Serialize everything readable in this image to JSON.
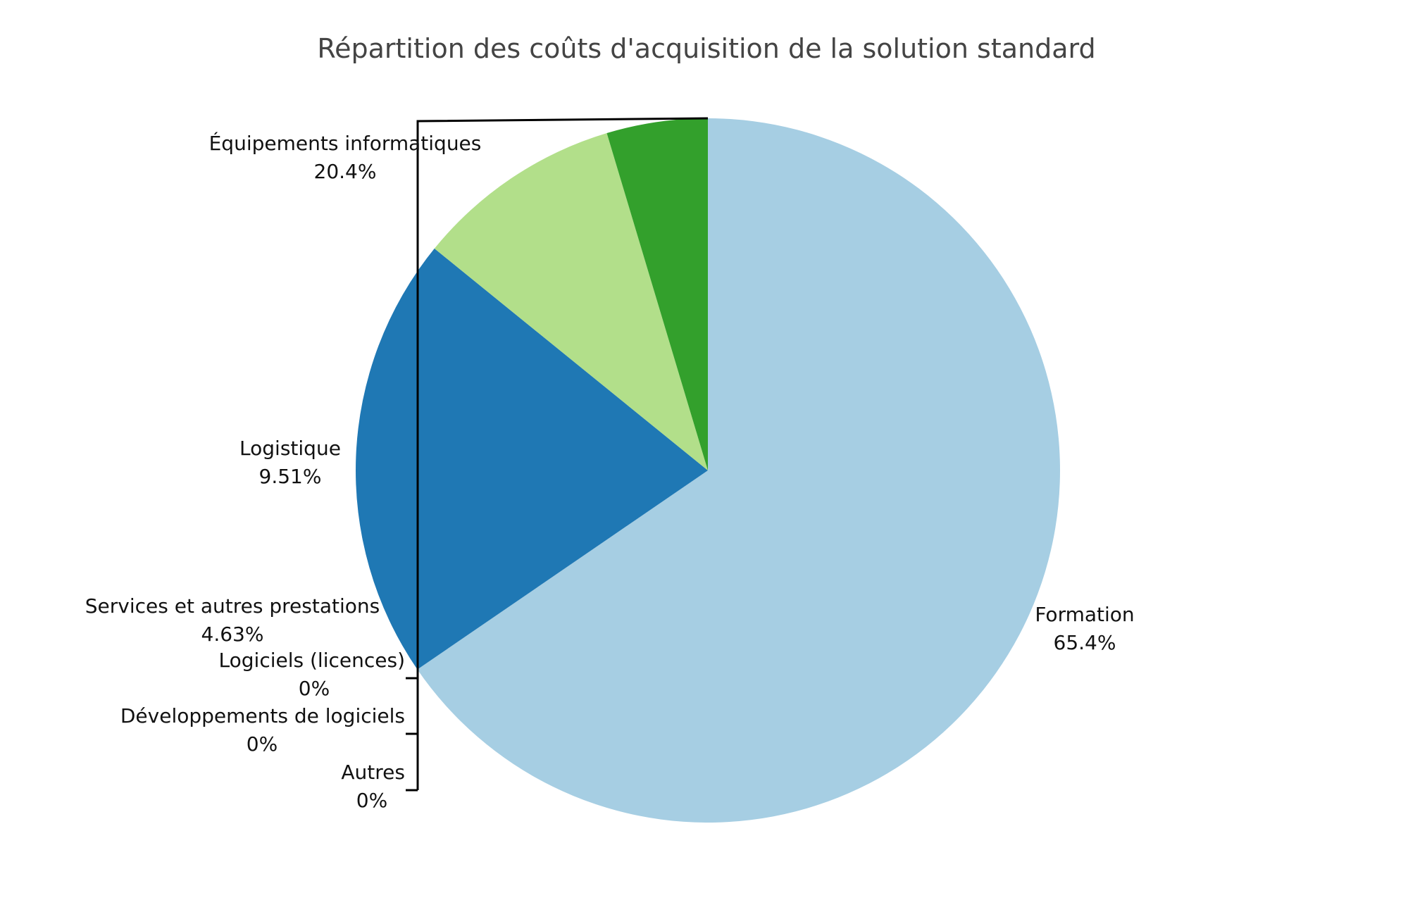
{
  "chart_data": {
    "type": "pie",
    "title": "Répartition des coûts d'acquisition de la solution standard",
    "slices": [
      {
        "label": "Formation",
        "percent_label": "65.4%",
        "value": 65.4,
        "color": "#a6cee3"
      },
      {
        "label": "Équipements informatiques",
        "percent_label": "20.4%",
        "value": 20.4,
        "color": "#1f78b4"
      },
      {
        "label": "Logistique",
        "percent_label": "9.51%",
        "value": 9.51,
        "color": "#b2df8a"
      },
      {
        "label": "Services et autres prestations",
        "percent_label": "4.63%",
        "value": 4.63,
        "color": "#33a02c"
      },
      {
        "label": "Logiciels (licences)",
        "percent_label": "0%",
        "value": 0,
        "color": "#fb9a99"
      },
      {
        "label": "Développements de logiciels",
        "percent_label": "0%",
        "value": 0,
        "color": "#e31a1c"
      },
      {
        "label": "Autres",
        "percent_label": "0%",
        "value": 0,
        "color": "#fdbf6f"
      }
    ],
    "direction": "clockwise",
    "legend": "none"
  }
}
